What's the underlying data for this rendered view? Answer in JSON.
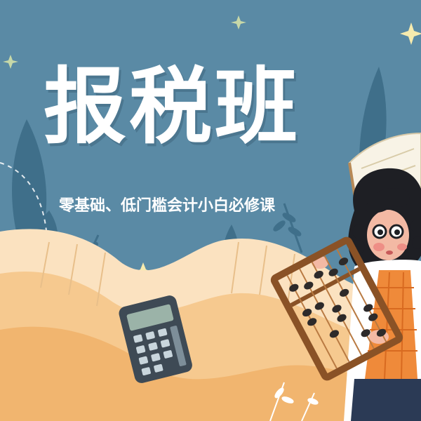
{
  "poster": {
    "title": "报税班",
    "subtitle": "零基础、低门槛会计小白必修课"
  },
  "colors": {
    "background": "#5a8aa5",
    "wave_light": "#fbe2c0",
    "wave_mid": "#f6c98f",
    "wave_deep": "#f1b56f",
    "leaf": "#3f6f8a",
    "star": "#f7ebae",
    "calculator": "#3e4a55",
    "abacus_frame": "#8a5226",
    "vest": "#ef8a3a",
    "hair": "#1e1f24"
  },
  "icons": [
    "calculator-icon",
    "abacus-icon",
    "book-icon",
    "star-icon",
    "leaf-icon"
  ]
}
